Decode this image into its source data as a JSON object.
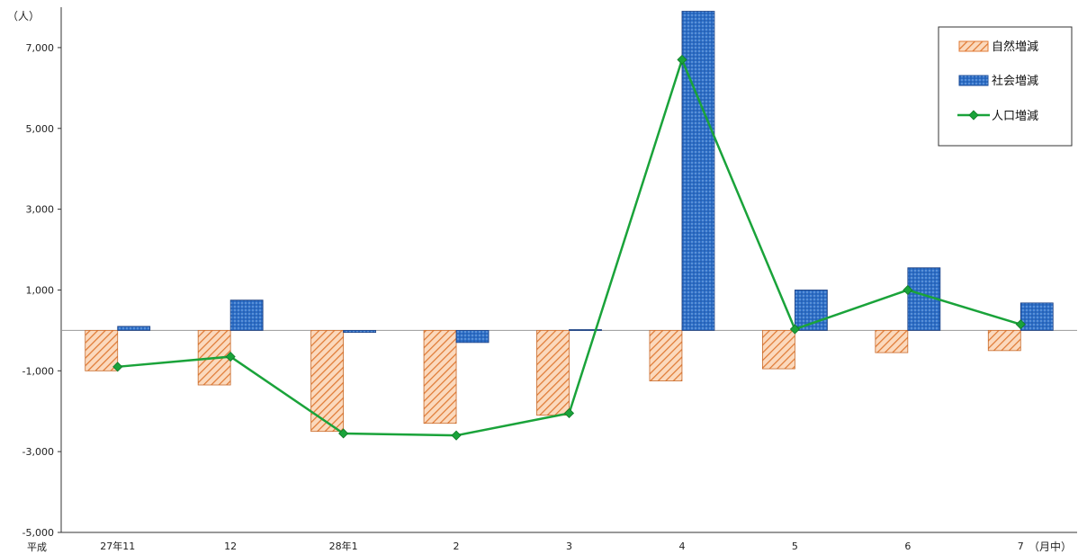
{
  "chart_data": {
    "type": "bar",
    "y_unit": "（人）",
    "x_unit": "（月中）",
    "era_label": "平成",
    "categories": [
      "27年11",
      "12",
      "28年1",
      "2",
      "3",
      "4",
      "5",
      "6",
      "7"
    ],
    "ylim": [
      -5000,
      8000
    ],
    "yticks": [
      -5000,
      -3000,
      -1000,
      1000,
      3000,
      5000,
      7000
    ],
    "ytick_labels": [
      "-5,000",
      "-3,000",
      "-1,000",
      "1,000",
      "3,000",
      "5,000",
      "7,000"
    ],
    "series": [
      {
        "name": "自然増減",
        "kind": "bar",
        "color": "#f4a870",
        "values": [
          -1000,
          -1350,
          -2500,
          -2300,
          -2100,
          -1250,
          -950,
          -550,
          -500
        ]
      },
      {
        "name": "社会増減",
        "kind": "bar",
        "color": "#2e6fc7",
        "values": [
          100,
          750,
          -50,
          -300,
          20,
          7900,
          1000,
          1550,
          680
        ]
      },
      {
        "name": "人口増減",
        "kind": "line",
        "color": "#1aa33a",
        "values": [
          -900,
          -650,
          -2550,
          -2600,
          -2050,
          6700,
          30,
          1000,
          150
        ]
      }
    ],
    "legend_position": "top-right",
    "grid": false
  }
}
